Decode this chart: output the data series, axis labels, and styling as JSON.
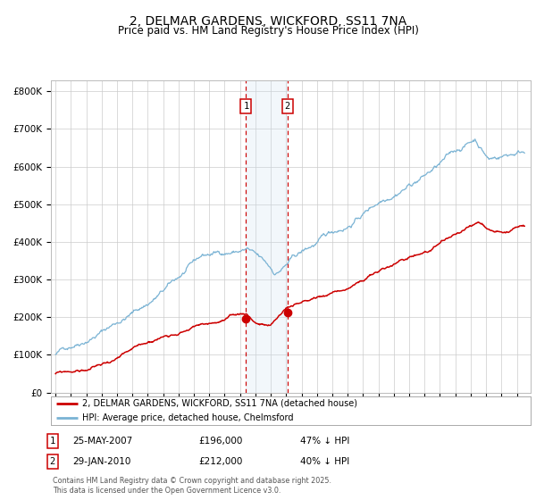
{
  "title": "2, DELMAR GARDENS, WICKFORD, SS11 7NA",
  "subtitle": "Price paid vs. HM Land Registry's House Price Index (HPI)",
  "title_fontsize": 10,
  "subtitle_fontsize": 8.5,
  "hpi_color": "#7ab3d4",
  "price_color": "#cc0000",
  "bg_color": "#ffffff",
  "grid_color": "#cccccc",
  "ylim": [
    0,
    830000
  ],
  "yticks": [
    0,
    100000,
    200000,
    300000,
    400000,
    500000,
    600000,
    700000,
    800000
  ],
  "ytick_labels": [
    "£0",
    "£100K",
    "£200K",
    "£300K",
    "£400K",
    "£500K",
    "£600K",
    "£700K",
    "£800K"
  ],
  "sale1_x": 2007.39,
  "sale1_price": 196000,
  "sale1_date_str": "25-MAY-2007",
  "sale1_pct": "47% ↓ HPI",
  "sale2_x": 2010.08,
  "sale2_price": 212000,
  "sale2_date_str": "29-JAN-2010",
  "sale2_pct": "40% ↓ HPI",
  "legend_line1": "2, DELMAR GARDENS, WICKFORD, SS11 7NA (detached house)",
  "legend_line2": "HPI: Average price, detached house, Chelmsford",
  "footnote": "Contains HM Land Registry data © Crown copyright and database right 2025.\nThis data is licensed under the Open Government Licence v3.0.",
  "shade_color": "#cce0f0",
  "vline_color": "#cc0000"
}
